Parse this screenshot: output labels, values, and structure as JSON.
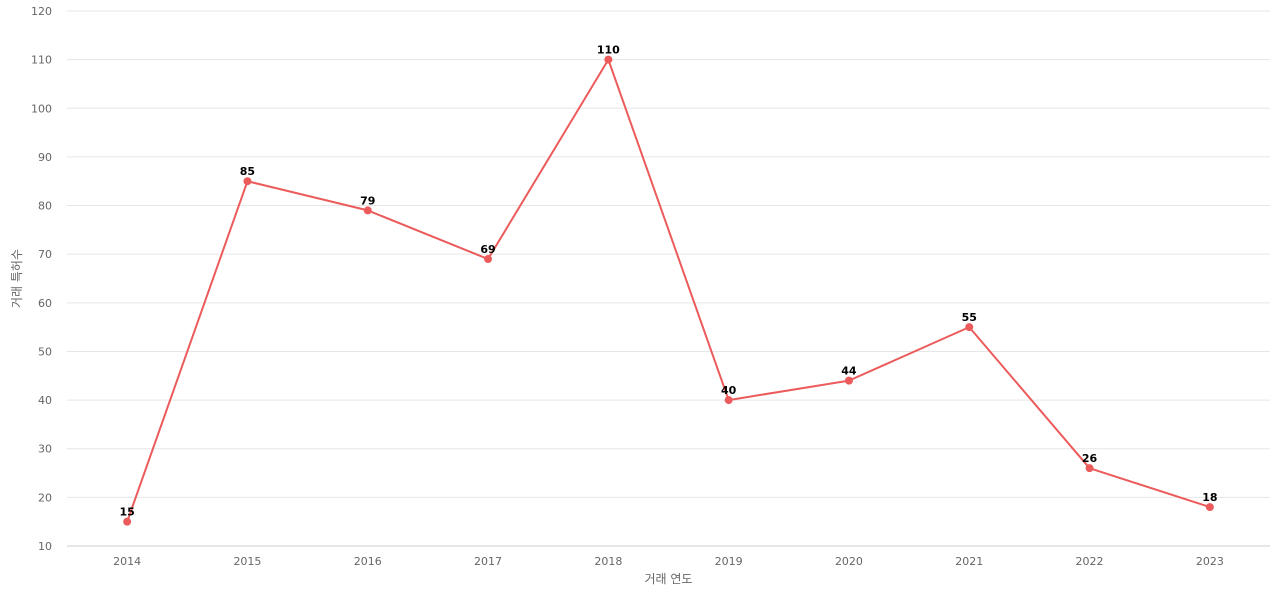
{
  "chart_data": {
    "type": "line",
    "xlabel": "거래 연도",
    "ylabel": "거래 특허수",
    "ylim": [
      10,
      120
    ],
    "yticks": [
      10,
      20,
      30,
      40,
      50,
      60,
      70,
      80,
      90,
      100,
      110,
      120
    ],
    "categories": [
      "2014",
      "2015",
      "2016",
      "2017",
      "2018",
      "2019",
      "2020",
      "2021",
      "2022",
      "2023"
    ],
    "series": [
      {
        "values": [
          15,
          85,
          79,
          69,
          110,
          40,
          44,
          55,
          26,
          18
        ]
      }
    ],
    "grid": true,
    "legend": "none",
    "line_color": "#ec5b5b"
  }
}
